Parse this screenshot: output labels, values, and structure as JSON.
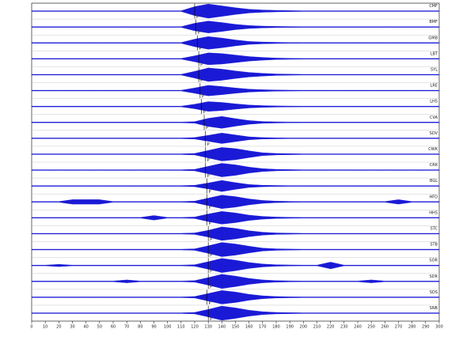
{
  "chart_data": {
    "type": "seismogram",
    "x": [
      0,
      10,
      20,
      30,
      40,
      50,
      60,
      70,
      80,
      90,
      100,
      110,
      120,
      130,
      140,
      150,
      160,
      170,
      180,
      190,
      200,
      210,
      220,
      230,
      240,
      250,
      260,
      270,
      280,
      290,
      300
    ],
    "xlim": [
      0,
      300
    ],
    "xticks": [
      0,
      10,
      20,
      30,
      40,
      50,
      60,
      70,
      80,
      90,
      100,
      110,
      120,
      130,
      140,
      150,
      160,
      170,
      180,
      190,
      200,
      210,
      220,
      230,
      240,
      250,
      260,
      270,
      280,
      290,
      300
    ],
    "pick_label": "P",
    "series": [
      {
        "name": "CMF",
        "color": "#1a1ad6",
        "pick": 120,
        "values": [
          0.05,
          0.05,
          0.05,
          0.05,
          0.05,
          0.05,
          0.05,
          0.05,
          0.05,
          0.05,
          0.05,
          0.05,
          0.6,
          0.95,
          0.7,
          0.45,
          0.25,
          0.15,
          0.1,
          0.07,
          0.05,
          0.05,
          0.05,
          0.05,
          0.05,
          0.05,
          0.05,
          0.05,
          0.05,
          0.05,
          0.05
        ]
      },
      {
        "name": "BMF",
        "color": "#1a1ad6",
        "pick": 121,
        "values": [
          0.05,
          0.05,
          0.05,
          0.05,
          0.05,
          0.05,
          0.05,
          0.05,
          0.05,
          0.05,
          0.05,
          0.05,
          0.5,
          0.8,
          0.6,
          0.35,
          0.2,
          0.12,
          0.08,
          0.06,
          0.05,
          0.05,
          0.05,
          0.05,
          0.05,
          0.05,
          0.05,
          0.05,
          0.05,
          0.05,
          0.05
        ]
      },
      {
        "name": "GMB",
        "color": "#1a1ad6",
        "pick": 122,
        "values": [
          0.05,
          0.05,
          0.05,
          0.05,
          0.05,
          0.05,
          0.05,
          0.05,
          0.05,
          0.05,
          0.05,
          0.05,
          0.5,
          0.85,
          0.65,
          0.4,
          0.2,
          0.12,
          0.08,
          0.06,
          0.05,
          0.05,
          0.05,
          0.05,
          0.05,
          0.05,
          0.05,
          0.05,
          0.05,
          0.05,
          0.05
        ]
      },
      {
        "name": "LBT",
        "color": "#1a1ad6",
        "pick": 123,
        "values": [
          0.05,
          0.05,
          0.05,
          0.05,
          0.05,
          0.05,
          0.05,
          0.05,
          0.05,
          0.05,
          0.05,
          0.05,
          0.4,
          0.8,
          0.7,
          0.5,
          0.3,
          0.18,
          0.1,
          0.07,
          0.05,
          0.05,
          0.05,
          0.05,
          0.05,
          0.05,
          0.05,
          0.05,
          0.05,
          0.05,
          0.05
        ]
      },
      {
        "name": "SYL",
        "color": "#1a1ad6",
        "pick": 123,
        "values": [
          0.05,
          0.05,
          0.05,
          0.05,
          0.05,
          0.05,
          0.05,
          0.05,
          0.05,
          0.05,
          0.05,
          0.05,
          0.45,
          0.9,
          0.75,
          0.5,
          0.3,
          0.18,
          0.1,
          0.07,
          0.05,
          0.05,
          0.05,
          0.05,
          0.05,
          0.05,
          0.05,
          0.05,
          0.05,
          0.05,
          0.05
        ]
      },
      {
        "name": "LRE",
        "color": "#1a1ad6",
        "pick": 124,
        "values": [
          0.05,
          0.05,
          0.05,
          0.05,
          0.05,
          0.05,
          0.05,
          0.05,
          0.05,
          0.05,
          0.05,
          0.05,
          0.35,
          0.7,
          0.55,
          0.35,
          0.2,
          0.12,
          0.08,
          0.06,
          0.05,
          0.05,
          0.05,
          0.05,
          0.05,
          0.05,
          0.05,
          0.05,
          0.05,
          0.05,
          0.05
        ]
      },
      {
        "name": "LHS",
        "color": "#1a1ad6",
        "pick": 125,
        "values": [
          0.05,
          0.05,
          0.05,
          0.05,
          0.05,
          0.05,
          0.05,
          0.05,
          0.05,
          0.05,
          0.05,
          0.05,
          0.3,
          0.65,
          0.55,
          0.35,
          0.2,
          0.12,
          0.08,
          0.06,
          0.05,
          0.05,
          0.05,
          0.05,
          0.05,
          0.05,
          0.05,
          0.05,
          0.05,
          0.05,
          0.05
        ]
      },
      {
        "name": "CVA",
        "color": "#1a1ad6",
        "pick": 127,
        "values": [
          0.05,
          0.05,
          0.05,
          0.05,
          0.05,
          0.05,
          0.05,
          0.05,
          0.05,
          0.05,
          0.05,
          0.05,
          0.1,
          0.55,
          0.8,
          0.5,
          0.25,
          0.12,
          0.08,
          0.06,
          0.05,
          0.05,
          0.05,
          0.05,
          0.05,
          0.05,
          0.05,
          0.05,
          0.05,
          0.05,
          0.05
        ]
      },
      {
        "name": "SDV",
        "color": "#1a1ad6",
        "pick": 128,
        "values": [
          0.05,
          0.05,
          0.05,
          0.05,
          0.05,
          0.05,
          0.05,
          0.05,
          0.05,
          0.05,
          0.05,
          0.05,
          0.1,
          0.4,
          0.7,
          0.45,
          0.2,
          0.1,
          0.07,
          0.05,
          0.05,
          0.05,
          0.05,
          0.05,
          0.05,
          0.05,
          0.05,
          0.05,
          0.05,
          0.05,
          0.05
        ]
      },
      {
        "name": "CWK",
        "color": "#1a1ad6",
        "pick": 128,
        "values": [
          0.05,
          0.05,
          0.05,
          0.05,
          0.05,
          0.05,
          0.05,
          0.05,
          0.05,
          0.05,
          0.05,
          0.05,
          0.1,
          0.5,
          0.9,
          0.75,
          0.45,
          0.2,
          0.1,
          0.07,
          0.05,
          0.05,
          0.05,
          0.05,
          0.05,
          0.05,
          0.05,
          0.05,
          0.05,
          0.05,
          0.05
        ]
      },
      {
        "name": "CRK",
        "color": "#1a1ad6",
        "pick": 128,
        "values": [
          0.05,
          0.05,
          0.05,
          0.05,
          0.05,
          0.05,
          0.05,
          0.05,
          0.05,
          0.05,
          0.05,
          0.05,
          0.1,
          0.5,
          0.9,
          0.7,
          0.4,
          0.2,
          0.1,
          0.07,
          0.05,
          0.05,
          0.05,
          0.05,
          0.05,
          0.05,
          0.05,
          0.05,
          0.05,
          0.05,
          0.05
        ]
      },
      {
        "name": "BGL",
        "color": "#1a1ad6",
        "pick": 129,
        "values": [
          0.05,
          0.05,
          0.05,
          0.05,
          0.05,
          0.05,
          0.05,
          0.05,
          0.05,
          0.05,
          0.05,
          0.05,
          0.1,
          0.4,
          0.75,
          0.45,
          0.2,
          0.1,
          0.07,
          0.05,
          0.05,
          0.05,
          0.05,
          0.05,
          0.05,
          0.05,
          0.05,
          0.05,
          0.05,
          0.05,
          0.05
        ]
      },
      {
        "name": "HFD",
        "color": "#1a1ad6",
        "pick": 129,
        "values": [
          0.05,
          0.05,
          0.05,
          0.3,
          0.3,
          0.3,
          0.05,
          0.05,
          0.05,
          0.05,
          0.05,
          0.05,
          0.1,
          0.5,
          0.9,
          0.7,
          0.4,
          0.2,
          0.1,
          0.07,
          0.05,
          0.05,
          0.05,
          0.05,
          0.05,
          0.05,
          0.05,
          0.3,
          0.05,
          0.05,
          0.05
        ]
      },
      {
        "name": "HHS",
        "color": "#1a1ad6",
        "pick": 129,
        "values": [
          0.05,
          0.05,
          0.05,
          0.05,
          0.05,
          0.05,
          0.05,
          0.05,
          0.05,
          0.3,
          0.05,
          0.05,
          0.1,
          0.5,
          0.85,
          0.65,
          0.35,
          0.18,
          0.1,
          0.07,
          0.05,
          0.05,
          0.05,
          0.05,
          0.05,
          0.05,
          0.05,
          0.05,
          0.05,
          0.05,
          0.05
        ]
      },
      {
        "name": "STC",
        "color": "#1a1ad6",
        "pick": 130,
        "values": [
          0.05,
          0.05,
          0.05,
          0.05,
          0.05,
          0.05,
          0.05,
          0.05,
          0.05,
          0.05,
          0.05,
          0.05,
          0.1,
          0.45,
          0.9,
          0.7,
          0.4,
          0.2,
          0.1,
          0.07,
          0.05,
          0.05,
          0.05,
          0.05,
          0.05,
          0.05,
          0.05,
          0.05,
          0.05,
          0.05,
          0.05
        ]
      },
      {
        "name": "STB",
        "color": "#1a1ad6",
        "pick": 130,
        "values": [
          0.05,
          0.05,
          0.05,
          0.05,
          0.05,
          0.05,
          0.05,
          0.05,
          0.05,
          0.05,
          0.05,
          0.05,
          0.1,
          0.5,
          0.95,
          0.75,
          0.45,
          0.2,
          0.1,
          0.07,
          0.05,
          0.05,
          0.05,
          0.05,
          0.05,
          0.05,
          0.05,
          0.05,
          0.05,
          0.05,
          0.05
        ]
      },
      {
        "name": "SOR",
        "color": "#1a1ad6",
        "pick": 130,
        "values": [
          0.05,
          0.05,
          0.15,
          0.05,
          0.05,
          0.05,
          0.05,
          0.05,
          0.05,
          0.05,
          0.05,
          0.05,
          0.1,
          0.5,
          0.95,
          0.7,
          0.4,
          0.2,
          0.1,
          0.07,
          0.05,
          0.05,
          0.45,
          0.05,
          0.05,
          0.05,
          0.05,
          0.05,
          0.05,
          0.05,
          0.05
        ]
      },
      {
        "name": "SDR",
        "color": "#1a1ad6",
        "pick": 130,
        "values": [
          0.05,
          0.05,
          0.05,
          0.05,
          0.05,
          0.05,
          0.05,
          0.2,
          0.05,
          0.05,
          0.05,
          0.05,
          0.1,
          0.5,
          0.95,
          0.7,
          0.4,
          0.2,
          0.1,
          0.07,
          0.05,
          0.05,
          0.05,
          0.05,
          0.05,
          0.2,
          0.05,
          0.05,
          0.05,
          0.05,
          0.05
        ]
      },
      {
        "name": "SDS",
        "color": "#1a1ad6",
        "pick": 129,
        "values": [
          0.05,
          0.05,
          0.05,
          0.05,
          0.05,
          0.05,
          0.05,
          0.05,
          0.05,
          0.05,
          0.05,
          0.05,
          0.1,
          0.5,
          0.9,
          0.7,
          0.4,
          0.2,
          0.1,
          0.07,
          0.05,
          0.05,
          0.05,
          0.05,
          0.05,
          0.05,
          0.05,
          0.05,
          0.05,
          0.05,
          0.05
        ]
      },
      {
        "name": "SNB",
        "color": "#1a1ad6",
        "pick": 130,
        "values": [
          0.05,
          0.05,
          0.05,
          0.05,
          0.05,
          0.05,
          0.05,
          0.05,
          0.05,
          0.05,
          0.05,
          0.05,
          0.1,
          0.5,
          0.95,
          0.7,
          0.4,
          0.2,
          0.1,
          0.07,
          0.05,
          0.05,
          0.05,
          0.05,
          0.05,
          0.05,
          0.05,
          0.05,
          0.05,
          0.05,
          0.05
        ]
      }
    ]
  }
}
